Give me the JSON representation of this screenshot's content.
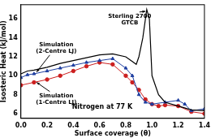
{
  "chart_data": {
    "type": "line",
    "x_label": "Surface coverage (θ)",
    "y_label": "Isosteric Heat (kJ/mol)",
    "annotations": [
      "Nitrogen at 77 K"
    ],
    "xlim": [
      0,
      1.4
    ],
    "xticks": [
      {
        "value": 0,
        "label": "0.0"
      },
      0.2,
      0.4,
      0.6,
      0.8,
      {
        "value": 1,
        "label": "1.0"
      },
      1.2,
      1.4
    ],
    "ylim": [
      5.5,
      17.5
    ],
    "yticks": [
      6,
      8,
      10,
      12,
      14,
      16
    ],
    "grid": false,
    "series": [
      {
        "name": "Sterling 2700 GTCB",
        "color": "#000000",
        "marker": "none",
        "line_style": "solid",
        "x": [
          0,
          0.05,
          0.1,
          0.2,
          0.3,
          0.4,
          0.5,
          0.6,
          0.7,
          0.8,
          0.85,
          0.88,
          0.9,
          0.93,
          0.96,
          0.98,
          1.0,
          1.05,
          1.1,
          1.2,
          1.3,
          1.4
        ],
        "values": [
          10.2,
          10.5,
          10.6,
          10.9,
          11.3,
          11.6,
          11.9,
          12.2,
          12.3,
          12.0,
          11.5,
          11.2,
          12.0,
          14.0,
          17.0,
          16.0,
          10.0,
          8.0,
          7.2,
          6.8,
          6.4,
          6.3
        ]
      },
      {
        "name": "Simulation (2-Centre LJ)",
        "color": "#1f3fa0",
        "marker": "triangle",
        "line_style": "solid",
        "x": [
          0,
          0.05,
          0.1,
          0.2,
          0.3,
          0.4,
          0.5,
          0.6,
          0.7,
          0.8,
          0.85,
          0.9,
          0.95,
          1.0,
          1.1,
          1.2,
          1.25,
          1.3,
          1.4
        ],
        "values": [
          9.8,
          10.1,
          10.2,
          10.5,
          10.8,
          11.1,
          11.4,
          11.6,
          11.8,
          10.8,
          10.0,
          8.0,
          7.2,
          7.0,
          7.2,
          7.4,
          7.0,
          6.3,
          6.5
        ]
      },
      {
        "name": "Simulation (1-Centre LJ)",
        "color": "#cc1f1f",
        "marker": "circle",
        "line_style": "solid",
        "x": [
          0,
          0.1,
          0.2,
          0.3,
          0.4,
          0.5,
          0.6,
          0.7,
          0.8,
          0.85,
          0.9,
          0.95,
          1.0,
          1.05,
          1.1,
          1.2,
          1.3,
          1.4
        ],
        "values": [
          9.0,
          9.3,
          9.6,
          10.0,
          10.5,
          11.0,
          11.4,
          11.2,
          10.0,
          9.3,
          8.5,
          7.5,
          7.0,
          6.8,
          6.9,
          6.8,
          6.2,
          6.0
        ]
      }
    ]
  }
}
